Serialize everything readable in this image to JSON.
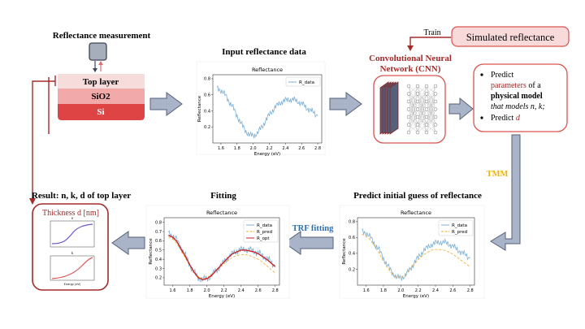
{
  "colors": {
    "dark_red": "#a52a2a",
    "red_border": "#d9534f",
    "layer_top": "#f7dcdc",
    "layer_sio2": "#f2a9a9",
    "layer_si": "#df4444",
    "arrow_fill": "#a9b4c8",
    "arrow_stroke": "#55617a",
    "tmm_yellow": "#f0b400",
    "trf_blue": "#2e6fb0",
    "data_blue": "#7aaed6",
    "pred_orange": "#f5a623",
    "opt_red": "#cc1f1f"
  },
  "measurement": {
    "title": "Reflectance measurement",
    "layers": [
      "Top layer",
      "SiO2",
      "Si"
    ]
  },
  "input_panel": {
    "title": "Input reflectance data",
    "chart_title": "Reflectance",
    "legend": [
      "R_data"
    ],
    "xlabel": "Energy (eV)",
    "ylabel": "Reflectance",
    "xticks": [
      "1.6",
      "1.8",
      "2.0",
      "2.2",
      "2.4",
      "2.6",
      "2.8"
    ],
    "yticks": [
      "0.2",
      "0.4",
      "0.6",
      "0.8"
    ]
  },
  "cnn": {
    "title_line1": "Convolutional Neural",
    "title_line2": "Network (CNN)",
    "train_label": "Train",
    "simulated_label": "Simulated reflectance"
  },
  "predict_box": {
    "b1_l1": "Predict",
    "b1_l2_red": "parameters",
    "b1_l2_rest": " of a",
    "b1_l3_bold": "physical model",
    "b1_l4": "that models n, k;",
    "b2_pre": "Predict ",
    "b2_red": "d"
  },
  "tmm_label": "TMM",
  "initial_guess": {
    "title": "Predict initial guess of reflectance",
    "chart_title": "Reflectance",
    "legend": [
      "R_data",
      "R_pred"
    ],
    "xlabel": "Energy (eV)",
    "ylabel": "Reflectance",
    "xticks": [
      "1.6",
      "1.8",
      "2.0",
      "2.2",
      "2.4",
      "2.6",
      "2.8"
    ],
    "yticks": [
      "0.2",
      "0.4",
      "0.6",
      "0.8"
    ]
  },
  "trf_label": "TRF fitting",
  "fitting": {
    "title": "Fitting",
    "chart_title": "Reflectance",
    "legend": [
      "R_data",
      "R_pred",
      "R_opt"
    ],
    "xlabel": "Energy (eV)",
    "ylabel": "Reflectance",
    "xticks": [
      "1.6",
      "1.8",
      "2.0",
      "2.2",
      "2.4",
      "2.6",
      "2.8"
    ],
    "yticks": [
      "0.2",
      "0.3",
      "0.4",
      "0.5",
      "0.6",
      "0.7",
      "0.8"
    ]
  },
  "result": {
    "title": "Result: n, k, d of top layer",
    "thickness": "Thickness d [nm]",
    "mini_top_label": "n",
    "mini_bot_label": "k",
    "mini_xlabel": "Energy (eV)"
  },
  "chart_data": [
    {
      "type": "line",
      "title": "Reflectance",
      "xlabel": "Energy (eV)",
      "ylabel": "Reflectance",
      "xlim": [
        1.5,
        2.85
      ],
      "ylim": [
        0.0,
        0.85
      ],
      "series": [
        {
          "name": "R_data",
          "x": [
            1.55,
            1.6,
            1.65,
            1.7,
            1.75,
            1.8,
            1.85,
            1.9,
            1.95,
            2.0,
            2.05,
            2.1,
            2.15,
            2.2,
            2.25,
            2.3,
            2.35,
            2.4,
            2.45,
            2.5,
            2.55,
            2.6,
            2.65,
            2.7,
            2.75,
            2.8
          ],
          "values": [
            0.68,
            0.66,
            0.6,
            0.52,
            0.44,
            0.34,
            0.24,
            0.16,
            0.1,
            0.09,
            0.12,
            0.19,
            0.27,
            0.35,
            0.42,
            0.47,
            0.51,
            0.53,
            0.54,
            0.54,
            0.52,
            0.49,
            0.45,
            0.41,
            0.38,
            0.34
          ]
        }
      ]
    },
    {
      "type": "line",
      "title": "Reflectance",
      "xlabel": "Energy (eV)",
      "ylabel": "Reflectance",
      "xlim": [
        1.5,
        2.85
      ],
      "ylim": [
        0.0,
        0.85
      ],
      "series": [
        {
          "name": "R_data",
          "x": [
            1.55,
            1.6,
            1.65,
            1.7,
            1.75,
            1.8,
            1.85,
            1.9,
            1.95,
            2.0,
            2.05,
            2.1,
            2.15,
            2.2,
            2.25,
            2.3,
            2.35,
            2.4,
            2.45,
            2.5,
            2.55,
            2.6,
            2.65,
            2.7,
            2.75,
            2.8
          ],
          "values": [
            0.68,
            0.66,
            0.6,
            0.52,
            0.44,
            0.34,
            0.24,
            0.16,
            0.1,
            0.09,
            0.12,
            0.19,
            0.27,
            0.35,
            0.42,
            0.47,
            0.51,
            0.53,
            0.54,
            0.54,
            0.52,
            0.49,
            0.45,
            0.41,
            0.38,
            0.34
          ]
        },
        {
          "name": "R_pred",
          "x": [
            1.55,
            1.6,
            1.65,
            1.7,
            1.75,
            1.8,
            1.85,
            1.9,
            1.95,
            2.0,
            2.05,
            2.1,
            2.15,
            2.2,
            2.25,
            2.3,
            2.35,
            2.4,
            2.45,
            2.5,
            2.55,
            2.6,
            2.65,
            2.7,
            2.75,
            2.8
          ],
          "values": [
            0.64,
            0.62,
            0.57,
            0.49,
            0.4,
            0.3,
            0.21,
            0.14,
            0.1,
            0.1,
            0.13,
            0.19,
            0.26,
            0.32,
            0.37,
            0.41,
            0.44,
            0.45,
            0.45,
            0.44,
            0.42,
            0.39,
            0.35,
            0.31,
            0.27,
            0.23
          ]
        }
      ]
    },
    {
      "type": "line",
      "title": "Reflectance",
      "xlabel": "Energy (eV)",
      "ylabel": "Reflectance",
      "xlim": [
        1.5,
        2.85
      ],
      "ylim": [
        0.12,
        0.85
      ],
      "series": [
        {
          "name": "R_data",
          "x": [
            1.55,
            1.6,
            1.65,
            1.7,
            1.75,
            1.8,
            1.85,
            1.9,
            1.95,
            2.0,
            2.05,
            2.1,
            2.15,
            2.2,
            2.25,
            2.3,
            2.35,
            2.4,
            2.45,
            2.5,
            2.55,
            2.6,
            2.65,
            2.7,
            2.75,
            2.8
          ],
          "values": [
            0.68,
            0.66,
            0.6,
            0.52,
            0.44,
            0.34,
            0.26,
            0.2,
            0.18,
            0.19,
            0.22,
            0.27,
            0.32,
            0.37,
            0.42,
            0.46,
            0.49,
            0.5,
            0.51,
            0.5,
            0.49,
            0.47,
            0.44,
            0.41,
            0.37,
            0.33
          ]
        },
        {
          "name": "R_pred",
          "x": [
            1.55,
            1.6,
            1.65,
            1.7,
            1.75,
            1.8,
            1.85,
            1.9,
            1.95,
            2.0,
            2.05,
            2.1,
            2.15,
            2.2,
            2.25,
            2.3,
            2.35,
            2.4,
            2.45,
            2.5,
            2.55,
            2.6,
            2.65,
            2.7,
            2.75,
            2.8
          ],
          "values": [
            0.64,
            0.62,
            0.57,
            0.49,
            0.41,
            0.33,
            0.26,
            0.21,
            0.19,
            0.2,
            0.23,
            0.27,
            0.31,
            0.35,
            0.39,
            0.42,
            0.44,
            0.45,
            0.45,
            0.44,
            0.42,
            0.4,
            0.37,
            0.33,
            0.29,
            0.25
          ]
        },
        {
          "name": "R_opt",
          "x": [
            1.55,
            1.6,
            1.65,
            1.7,
            1.75,
            1.8,
            1.85,
            1.9,
            1.95,
            2.0,
            2.05,
            2.1,
            2.15,
            2.2,
            2.25,
            2.3,
            2.35,
            2.4,
            2.45,
            2.5,
            2.55,
            2.6,
            2.65,
            2.7,
            2.75,
            2.8
          ],
          "values": [
            0.66,
            0.64,
            0.59,
            0.51,
            0.43,
            0.34,
            0.26,
            0.2,
            0.18,
            0.19,
            0.22,
            0.27,
            0.32,
            0.37,
            0.42,
            0.46,
            0.48,
            0.5,
            0.5,
            0.49,
            0.48,
            0.46,
            0.43,
            0.4,
            0.36,
            0.32
          ]
        }
      ]
    }
  ]
}
